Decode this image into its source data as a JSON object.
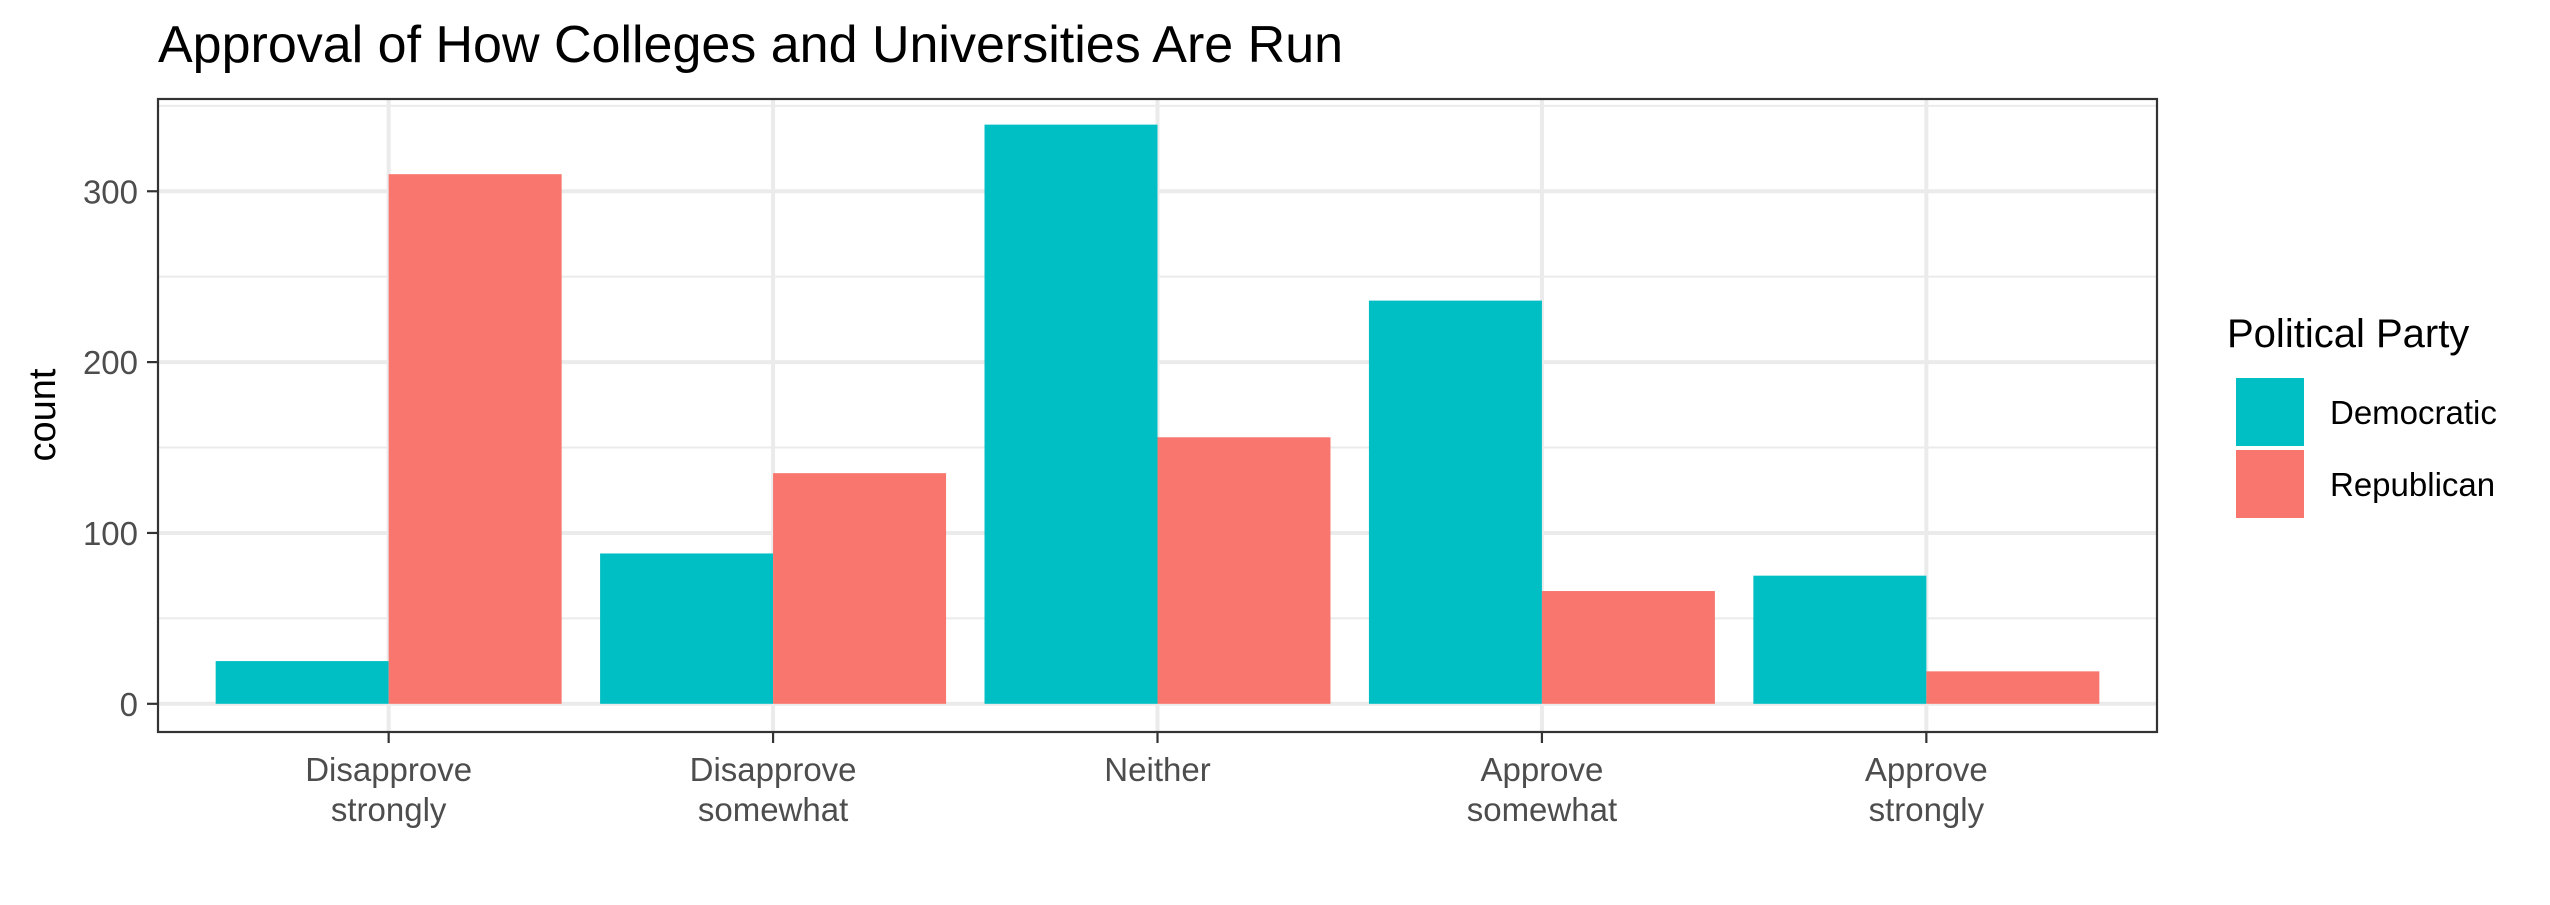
{
  "chart_data": {
    "type": "bar",
    "title": "Approval of How Colleges and Universities Are Run",
    "xlabel": "",
    "ylabel": "count",
    "categories": [
      [
        "Disapprove",
        "strongly"
      ],
      [
        "Disapprove",
        "somewhat"
      ],
      [
        "Neither"
      ],
      [
        "Approve",
        "somewhat"
      ],
      [
        "Approve",
        "strongly"
      ]
    ],
    "series": [
      {
        "name": "Democratic",
        "color": "#00BFC4",
        "values": [
          25,
          88,
          339,
          236,
          75
        ]
      },
      {
        "name": "Republican",
        "color": "#F8766D",
        "values": [
          310,
          135,
          156,
          66,
          19
        ]
      }
    ],
    "ylim": [
      -16.5,
      354
    ],
    "yticks": [
      0,
      100,
      200,
      300
    ],
    "grid": true,
    "legend": {
      "title": "Political Party",
      "position": "right"
    }
  }
}
